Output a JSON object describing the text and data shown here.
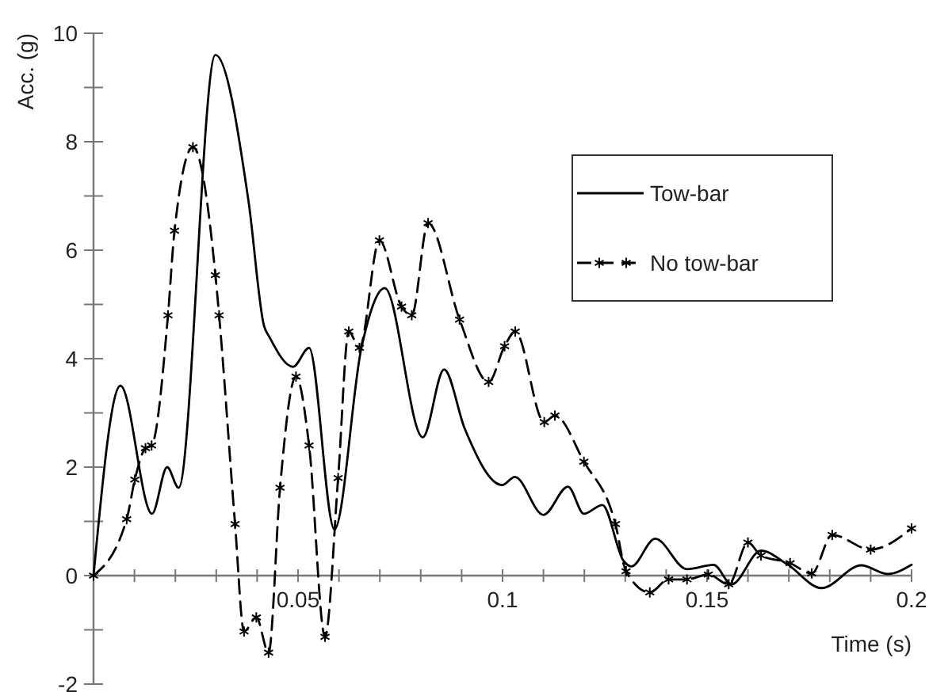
{
  "chart_data": {
    "type": "line",
    "xlabel": "Time (s)",
    "ylabel": "Acc. (g)",
    "xlim": [
      0,
      0.2
    ],
    "ylim": [
      -2,
      10
    ],
    "xticks": [
      {
        "value": 0.01,
        "label": null
      },
      {
        "value": 0.02,
        "label": null
      },
      {
        "value": 0.03,
        "label": null
      },
      {
        "value": 0.04,
        "label": null
      },
      {
        "value": 0.05,
        "label": "0.05"
      },
      {
        "value": 0.06,
        "label": null
      },
      {
        "value": 0.07,
        "label": null
      },
      {
        "value": 0.08,
        "label": null
      },
      {
        "value": 0.09,
        "label": null
      },
      {
        "value": 0.1,
        "label": "0.1"
      },
      {
        "value": 0.11,
        "label": null
      },
      {
        "value": 0.12,
        "label": null
      },
      {
        "value": 0.13,
        "label": null
      },
      {
        "value": 0.14,
        "label": null
      },
      0.15,
      {
        "value": 0.16,
        "label": null
      },
      {
        "value": 0.17,
        "label": null
      },
      {
        "value": 0.18,
        "label": null
      },
      {
        "value": 0.19,
        "label": null
      },
      {
        "value": 0.2,
        "label": "0.2"
      }
    ],
    "yticks": [
      -2,
      {
        "value": -1,
        "label": null
      },
      0,
      {
        "value": 1,
        "label": null
      },
      2,
      {
        "value": 3,
        "label": null
      },
      4,
      {
        "value": 5,
        "label": null
      },
      6,
      {
        "value": 7,
        "label": null
      },
      8,
      {
        "value": 9,
        "label": null
      },
      10
    ],
    "grid": false,
    "legend": "top right",
    "series": [
      {
        "name": "Tow-bar",
        "color": "#000000",
        "line_style": "solid",
        "marker": "none",
        "x": [
          0,
          0.0066,
          0.0143,
          0.018,
          0.0208,
          0.0298,
          0.0379,
          0.0417,
          0.043,
          0.0488,
          0.0527,
          0.0589,
          0.0655,
          0.0712,
          0.0805,
          0.0857,
          0.0908,
          0.0999,
          0.103,
          0.11,
          0.116,
          0.1199,
          0.1244,
          0.1296,
          0.1315,
          0.1373,
          0.1451,
          0.1516,
          0.156,
          0.1632,
          0.1696,
          0.178,
          0.1877,
          0.1942,
          0.2
        ],
        "values": [
          0,
          3.5,
          1.14,
          2.0,
          1.62,
          9.6,
          6.9,
          4.6,
          4.4,
          3.85,
          4.2,
          0.85,
          4.2,
          5.3,
          2.55,
          3.8,
          2.7,
          1.67,
          1.82,
          1.12,
          1.64,
          1.14,
          1.3,
          0.27,
          0.17,
          0.68,
          0.12,
          0.2,
          -0.16,
          0.46,
          0.21,
          -0.23,
          0.19,
          0.03,
          0.2
        ]
      },
      {
        "name": "No tow-bar",
        "color": "#000000",
        "line_style": "dashed",
        "marker": "cross",
        "x": [
          0,
          0.0081,
          0.0101,
          0.0127,
          0.0142,
          0.0182,
          0.0198,
          0.0243,
          0.0298,
          0.0307,
          0.0346,
          0.0368,
          0.0398,
          0.0428,
          0.0456,
          0.0495,
          0.0527,
          0.0566,
          0.0598,
          0.0624,
          0.065,
          0.0699,
          0.0753,
          0.0778,
          0.0818,
          0.0895,
          0.0966,
          0.1005,
          0.1031,
          0.1102,
          0.1128,
          0.1199,
          0.1276,
          0.1302,
          0.136,
          0.1406,
          0.1451,
          0.1503,
          0.1553,
          0.16,
          0.1632,
          0.1703,
          0.1756,
          0.1806,
          0.19,
          0.2
        ],
        "values": [
          0,
          1.04,
          1.77,
          2.35,
          2.4,
          4.8,
          6.36,
          7.9,
          5.54,
          4.8,
          0.95,
          -1.03,
          -0.77,
          -1.42,
          1.62,
          3.67,
          2.4,
          -1.13,
          1.8,
          4.5,
          4.2,
          6.18,
          4.96,
          4.8,
          6.5,
          4.72,
          3.57,
          4.23,
          4.5,
          2.83,
          2.95,
          2.1,
          0.95,
          0.08,
          -0.31,
          -0.07,
          -0.07,
          0.02,
          -0.16,
          0.61,
          0.37,
          0.23,
          0.04,
          0.75,
          0.48,
          0.87
        ]
      }
    ]
  }
}
